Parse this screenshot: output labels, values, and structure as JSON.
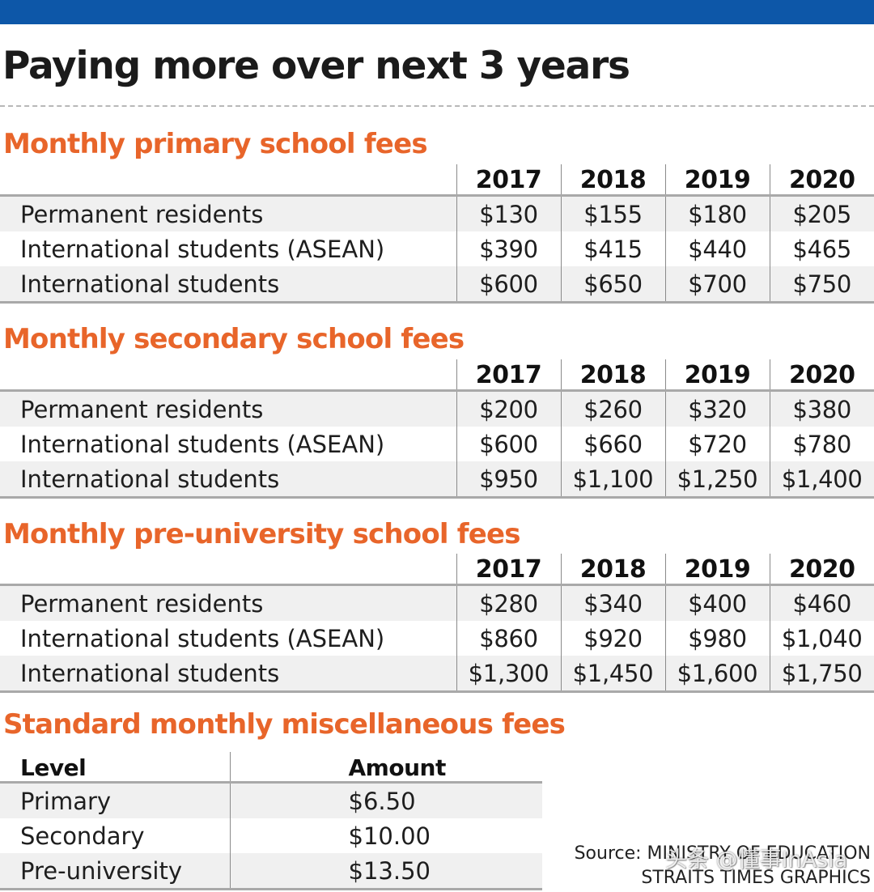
{
  "title": "Paying more over next 3 years",
  "chart_data": [
    {
      "type": "table",
      "title": "Monthly primary school fees",
      "columns": [
        "2017",
        "2018",
        "2019",
        "2020"
      ],
      "rows": [
        {
          "label": "Permanent residents",
          "values": [
            "$130",
            "$155",
            "$180",
            "$205"
          ]
        },
        {
          "label": "International students (ASEAN)",
          "values": [
            "$390",
            "$415",
            "$440",
            "$465"
          ]
        },
        {
          "label": "International students",
          "values": [
            "$600",
            "$650",
            "$700",
            "$750"
          ]
        }
      ]
    },
    {
      "type": "table",
      "title": "Monthly secondary school fees",
      "columns": [
        "2017",
        "2018",
        "2019",
        "2020"
      ],
      "rows": [
        {
          "label": "Permanent residents",
          "values": [
            "$200",
            "$260",
            "$320",
            "$380"
          ]
        },
        {
          "label": "International students (ASEAN)",
          "values": [
            "$600",
            "$660",
            "$720",
            "$780"
          ]
        },
        {
          "label": "International students",
          "values": [
            "$950",
            "$1,100",
            "$1,250",
            "$1,400"
          ]
        }
      ]
    },
    {
      "type": "table",
      "title": "Monthly pre-university school fees",
      "columns": [
        "2017",
        "2018",
        "2019",
        "2020"
      ],
      "rows": [
        {
          "label": "Permanent residents",
          "values": [
            "$280",
            "$340",
            "$400",
            "$460"
          ]
        },
        {
          "label": "International students (ASEAN)",
          "values": [
            "$860",
            "$920",
            "$980",
            "$1,040"
          ]
        },
        {
          "label": "International students",
          "values": [
            "$1,300",
            "$1,450",
            "$1,600",
            "$1,750"
          ]
        }
      ]
    },
    {
      "type": "table",
      "title": "Standard monthly miscellaneous fees",
      "columns": [
        "Level",
        "Amount"
      ],
      "rows": [
        {
          "label": "Primary",
          "values": [
            "$6.50"
          ]
        },
        {
          "label": "Secondary",
          "values": [
            "$10.00"
          ]
        },
        {
          "label": "Pre-university",
          "values": [
            "$13.50"
          ]
        }
      ]
    }
  ],
  "source": {
    "line1": "Source: MINISTRY OF EDUCATION",
    "line2": "STRAITS TIMES GRAPHICS"
  },
  "watermark": "头条 @懂事InAsia",
  "colors": {
    "top_bar": "#0d57a8",
    "section_title": "#e8652a",
    "row_shade": "#f0f0f0",
    "rule": "#a9a9a9"
  }
}
